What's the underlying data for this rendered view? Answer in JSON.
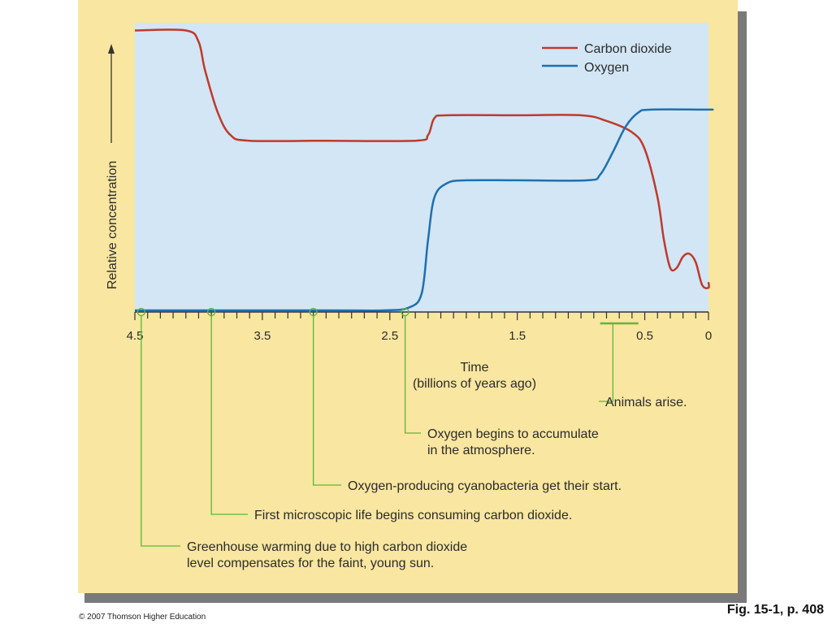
{
  "chart_data": {
    "type": "line",
    "ylabel": "Relative concentration",
    "xlabel_line1": "Time",
    "xlabel_line2": "(billions of years ago)",
    "x_reversed": true,
    "xlim": [
      4.5,
      0
    ],
    "ylim": [
      0,
      1
    ],
    "x_tick_labels": [
      "4.5",
      "3.5",
      "2.5",
      "1.5",
      "0.5",
      "0"
    ],
    "x_tick_values": [
      4.5,
      3.5,
      2.5,
      1.5,
      0.5,
      0
    ],
    "grid": false,
    "legend_position": "top-right",
    "series": [
      {
        "name": "Carbon dioxide",
        "color": "#c0392b",
        "points": [
          [
            4.5,
            0.99
          ],
          [
            4.1,
            0.99
          ],
          [
            4.0,
            0.95
          ],
          [
            3.95,
            0.85
          ],
          [
            3.85,
            0.7
          ],
          [
            3.75,
            0.62
          ],
          [
            3.6,
            0.6
          ],
          [
            3.0,
            0.6
          ],
          [
            2.3,
            0.6
          ],
          [
            2.2,
            0.62
          ],
          [
            2.15,
            0.68
          ],
          [
            2.05,
            0.69
          ],
          [
            1.5,
            0.69
          ],
          [
            1.0,
            0.69
          ],
          [
            0.8,
            0.67
          ],
          [
            0.6,
            0.63
          ],
          [
            0.5,
            0.57
          ],
          [
            0.4,
            0.4
          ],
          [
            0.35,
            0.25
          ],
          [
            0.3,
            0.15
          ],
          [
            0.25,
            0.15
          ],
          [
            0.2,
            0.19
          ],
          [
            0.15,
            0.2
          ],
          [
            0.1,
            0.17
          ],
          [
            0.05,
            0.09
          ],
          [
            0.0,
            0.08
          ],
          [
            -0.1,
            0.1
          ]
        ]
      },
      {
        "name": "Oxygen",
        "color": "#1f6fb0",
        "points": [
          [
            4.5,
            0.0
          ],
          [
            3.0,
            0.0
          ],
          [
            2.55,
            0.0
          ],
          [
            2.35,
            0.01
          ],
          [
            2.25,
            0.06
          ],
          [
            2.2,
            0.25
          ],
          [
            2.15,
            0.4
          ],
          [
            2.05,
            0.45
          ],
          [
            1.9,
            0.46
          ],
          [
            1.5,
            0.46
          ],
          [
            0.95,
            0.46
          ],
          [
            0.85,
            0.48
          ],
          [
            0.75,
            0.56
          ],
          [
            0.65,
            0.65
          ],
          [
            0.55,
            0.7
          ],
          [
            0.45,
            0.71
          ],
          [
            0.0,
            0.71
          ],
          [
            -0.1,
            0.71
          ]
        ]
      }
    ]
  },
  "annotations": [
    {
      "x": 0.75,
      "line1": "Animals arise.",
      "line2": ""
    },
    {
      "x": 2.38,
      "line1": "Oxygen begins to accumulate",
      "line2": "in the atmosphere."
    },
    {
      "x": 3.1,
      "line1": "Oxygen-producing cyanobacteria get their start.",
      "line2": ""
    },
    {
      "x": 3.9,
      "line1": "First microscopic life begins consuming carbon dioxide.",
      "line2": ""
    },
    {
      "x": 4.45,
      "line1": "Greenhouse warming due to high carbon dioxide",
      "line2": "level compensates for the faint, young sun."
    }
  ],
  "colors": {
    "panel_bg": "#f9e6a0",
    "plot_bg": "#d2e6f5",
    "annotation_line": "#5bb83a"
  },
  "footer": {
    "credit": "© 2007 Thomson Higher Education",
    "figure_ref": "Fig. 15-1, p. 408"
  }
}
